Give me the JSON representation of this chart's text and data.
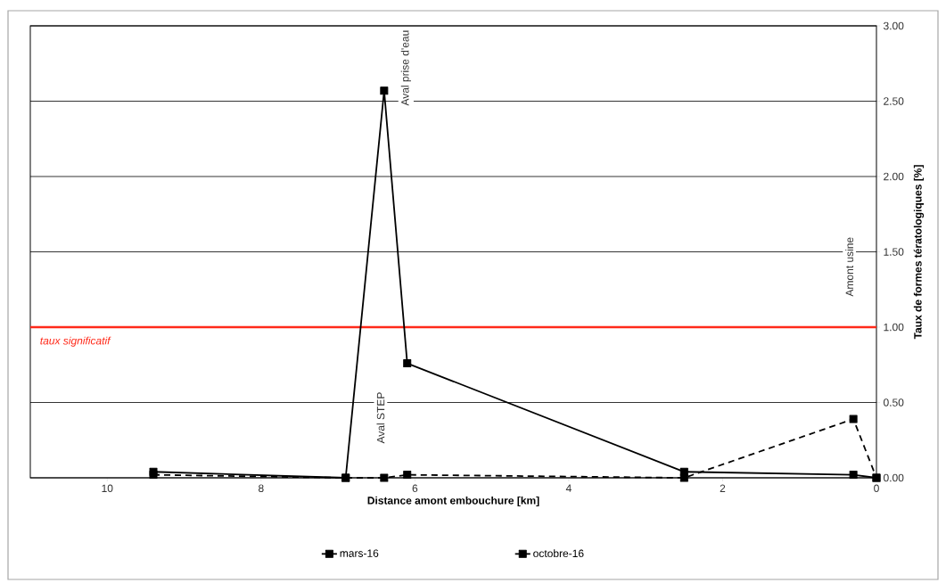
{
  "chart_data": {
    "type": "line",
    "xlabel": "Distance amont embouchure [km]",
    "y2label": "Taux de formes tératologiques [%]",
    "x": [
      9.4,
      6.9,
      6.4,
      6.1,
      2.5,
      0.3,
      0
    ],
    "series": [
      {
        "name": "mars-16",
        "color": "#000000",
        "line_style": "solid",
        "axis": "y2",
        "values": [
          0.04,
          0.0,
          2.57,
          0.76,
          0.04,
          0.02,
          0.0
        ]
      },
      {
        "name": "octobre-16",
        "color": "#000000",
        "line_style": "dashed",
        "axis": "y2",
        "values": [
          0.02,
          0.0,
          0.0,
          0.02,
          0.0,
          0.39,
          0.0
        ]
      }
    ],
    "marker": "square",
    "xlim": [
      11,
      0
    ],
    "xticks": [
      10,
      8,
      6,
      4,
      2,
      0
    ],
    "y2lim": [
      0,
      3
    ],
    "y2ticks": [
      {
        "value": 0,
        "label": "0.00"
      },
      {
        "value": 0.5,
        "label": "0.50"
      },
      {
        "value": 1,
        "label": "1.00"
      },
      {
        "value": 1.5,
        "label": "1.50"
      },
      {
        "value": 2,
        "label": "2.00"
      },
      {
        "value": 2.5,
        "label": "2.50"
      },
      {
        "value": 3,
        "label": "3.00"
      }
    ],
    "grid": "y",
    "legend": "bottom",
    "ref_lines": [
      {
        "axis": "y2",
        "value": 1,
        "label": "taux significatif",
        "color": "#ff2a1a"
      }
    ],
    "annotations": [
      "Aval prise d'eau",
      "Aval STEP",
      "Amont usine"
    ]
  }
}
